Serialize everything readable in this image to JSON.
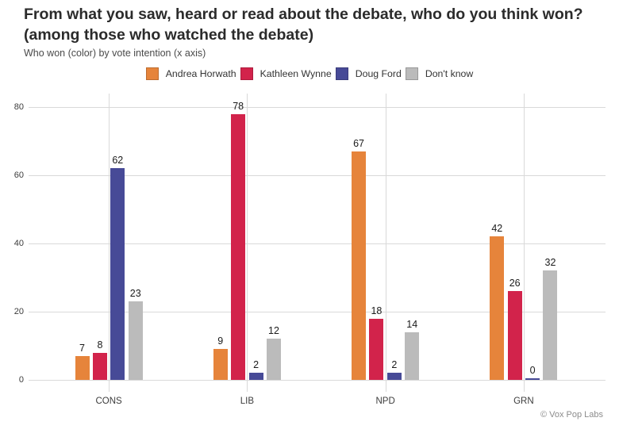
{
  "header": {
    "title": "From what you saw, heard or read about the debate, who do you think won? (among those who watched the debate)",
    "subtitle": "Who won (color) by vote intention (x axis)"
  },
  "footer": {
    "credit": "© Vox Pop Labs"
  },
  "chart_data": {
    "type": "bar",
    "title": "From what you saw, heard or read about the debate, who do you think won? (among those who watched the debate)",
    "subtitle": "Who won (color) by vote intention (x axis)",
    "categories": [
      "CONS",
      "LIB",
      "NPD",
      "GRN"
    ],
    "series": [
      {
        "name": "Andrea Horwath",
        "color": "#E6843B",
        "values": [
          7,
          9,
          67,
          42
        ]
      },
      {
        "name": "Kathleen Wynne",
        "color": "#D2234B",
        "values": [
          8,
          78,
          18,
          26
        ]
      },
      {
        "name": "Doug Ford",
        "color": "#474A97",
        "values": [
          62,
          2,
          2,
          0
        ]
      },
      {
        "name": "Don't know",
        "color": "#BBBBBB",
        "values": [
          23,
          12,
          14,
          32
        ]
      }
    ],
    "xlabel": "",
    "ylabel": "",
    "ylim": [
      0,
      80
    ],
    "yticks": [
      0,
      20,
      40,
      60,
      80
    ],
    "grid": true,
    "legend_position": "top",
    "bar_labels": true,
    "colors": {
      "gridline": "#d9d9d9",
      "title_text": "#2b2b2b",
      "label_text": "#1a1a1a"
    }
  }
}
